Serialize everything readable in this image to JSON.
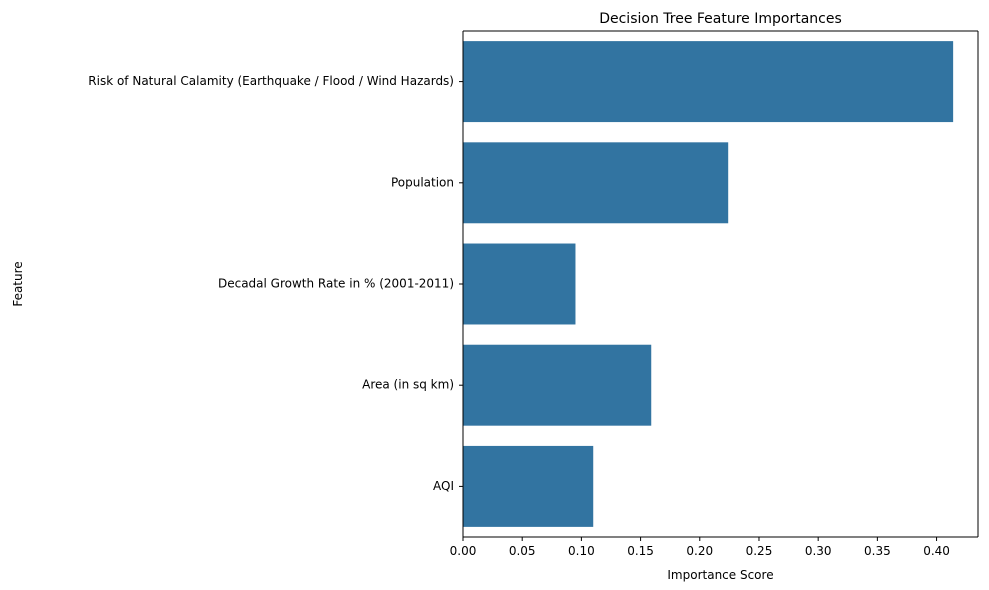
{
  "chart_data": {
    "type": "bar",
    "orientation": "horizontal",
    "title": "Decision Tree Feature Importances",
    "xlabel": "Importance Score",
    "ylabel": "Feature",
    "categories": [
      "Risk of Natural Calamity (Earthquake / Flood / Wind Hazards)",
      "Population",
      "Decadal Growth Rate in % (2001-2011)",
      "Area (in sq km)",
      "AQI"
    ],
    "values": [
      0.414,
      0.224,
      0.095,
      0.159,
      0.11
    ],
    "xlim": [
      0,
      0.435
    ],
    "xticks": [
      0.0,
      0.05,
      0.1,
      0.15,
      0.2,
      0.25,
      0.3,
      0.35,
      0.4
    ],
    "xtick_labels": [
      "0.00",
      "0.05",
      "0.10",
      "0.15",
      "0.20",
      "0.25",
      "0.30",
      "0.35",
      "0.40"
    ],
    "grid": false,
    "legend": "none",
    "bar_color": "#3274a1"
  }
}
